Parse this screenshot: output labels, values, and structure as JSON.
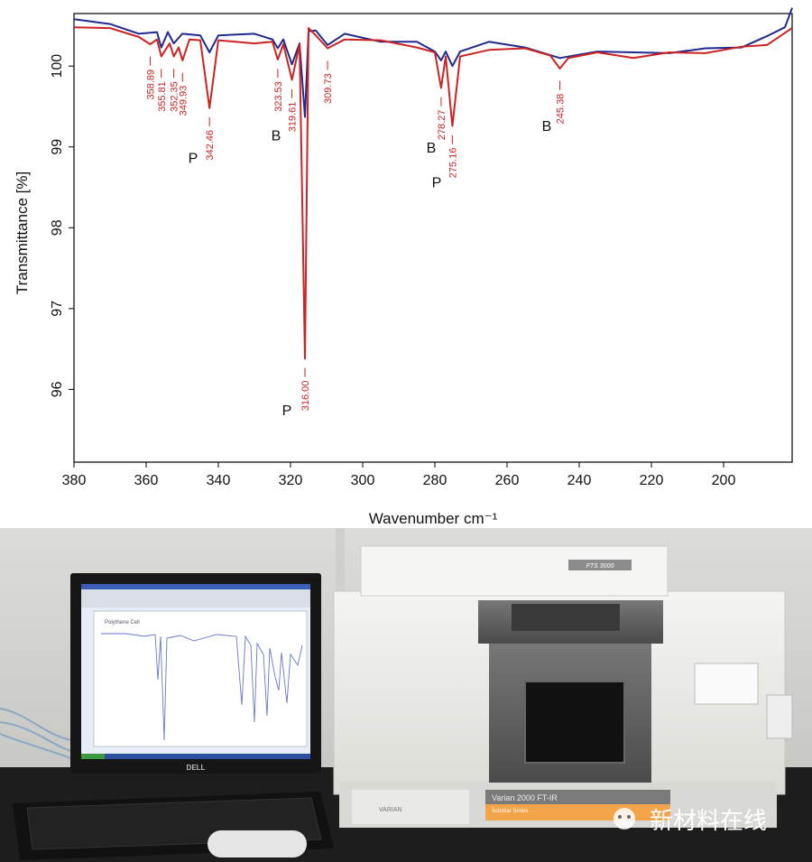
{
  "chart_data": {
    "type": "line",
    "xlabel": "Wavenumber cm⁻¹",
    "ylabel": "Transmittance [%]",
    "xlim": [
      380,
      181
    ],
    "ylim": [
      95.1,
      100.65
    ],
    "x_ticks": [
      380,
      360,
      340,
      320,
      300,
      280,
      260,
      240,
      220,
      200
    ],
    "y_ticks": [
      96,
      97,
      98,
      99,
      100
    ],
    "grid": false,
    "series": [
      {
        "color": "#cc2222",
        "x": [
          380,
          370,
          362,
          358.89,
          357,
          355.81,
          353.5,
          352.35,
          351,
          349.93,
          348,
          345,
          342.46,
          340,
          330,
          325,
          323.53,
          322,
          319.61,
          317.5,
          316.0,
          315,
          313,
          309.73,
          305,
          295,
          285,
          280,
          278.27,
          277,
          275.16,
          273,
          265,
          255,
          248,
          245.38,
          243,
          235,
          225,
          215,
          205,
          195,
          188,
          181
        ],
        "y": [
          100.5,
          100.45,
          100.38,
          100.25,
          100.35,
          100.1,
          100.3,
          100.1,
          100.25,
          100.05,
          100.35,
          100.3,
          99.5,
          100.3,
          100.3,
          100.28,
          100.1,
          100.25,
          99.85,
          100.25,
          96.4,
          100.45,
          100.4,
          100.2,
          100.35,
          100.3,
          100.25,
          100.15,
          99.75,
          100.1,
          99.28,
          100.1,
          100.22,
          100.2,
          100.15,
          99.95,
          100.12,
          100.15,
          100.12,
          100.15,
          100.18,
          100.22,
          100.28,
          100.45
        ]
      },
      {
        "color": "#1f2a8c",
        "x": [
          380,
          370,
          362,
          357,
          355.81,
          354,
          352.35,
          350,
          345,
          342.46,
          340,
          330,
          325,
          323.53,
          322,
          319.61,
          317.5,
          316.0,
          315,
          313,
          309.73,
          305,
          295,
          285,
          280,
          278.27,
          277,
          275.16,
          273,
          265,
          255,
          245.38,
          235,
          225,
          215,
          205,
          195,
          188,
          183,
          181
        ],
        "y": [
          100.6,
          100.5,
          100.42,
          100.4,
          100.25,
          100.4,
          100.3,
          100.38,
          100.4,
          100.15,
          100.4,
          100.38,
          100.35,
          100.2,
          100.35,
          100.0,
          100.3,
          99.35,
          100.45,
          100.42,
          100.28,
          100.38,
          100.32,
          100.28,
          100.2,
          100.05,
          100.2,
          99.98,
          100.2,
          100.28,
          100.25,
          100.08,
          100.2,
          100.15,
          100.18,
          100.2,
          100.25,
          100.35,
          100.5,
          100.7
        ]
      }
    ],
    "peak_labels": [
      {
        "x": 358.89,
        "text": "358.89"
      },
      {
        "x": 355.81,
        "text": "355.81"
      },
      {
        "x": 352.35,
        "text": "352.35"
      },
      {
        "x": 349.93,
        "text": "349.93"
      },
      {
        "x": 342.46,
        "text": "342.46"
      },
      {
        "x": 323.53,
        "text": "323.53"
      },
      {
        "x": 319.61,
        "text": "319.61"
      },
      {
        "x": 316.0,
        "text": "316.00"
      },
      {
        "x": 309.73,
        "text": "309.73"
      },
      {
        "x": 278.27,
        "text": "278.27"
      },
      {
        "x": 275.16,
        "text": "275.16"
      },
      {
        "x": 245.38,
        "text": "245.38"
      }
    ],
    "annotations": [
      {
        "x": 347,
        "y": 98.8,
        "text": "P"
      },
      {
        "x": 324,
        "y": 99.08,
        "text": "B"
      },
      {
        "x": 321,
        "y": 95.68,
        "text": "P"
      },
      {
        "x": 281,
        "y": 98.93,
        "text": "B"
      },
      {
        "x": 279.5,
        "y": 98.5,
        "text": "P"
      },
      {
        "x": 249,
        "y": 99.2,
        "text": "B"
      }
    ]
  },
  "photo": {
    "monitor_brand": "DELL",
    "monitor_screen_title": "Polythene Cell",
    "instrument_badge": "FTS 3000",
    "instrument_brand": "VARIAN",
    "instrument_model": "Varian 2000 FT-IR",
    "instrument_subtitle": "Scimitar Series",
    "watermark_text": "新材料在线"
  },
  "colors": {
    "series_red": "#cc2222",
    "series_blue": "#1f2a8c",
    "label_red": "#cc2222"
  }
}
